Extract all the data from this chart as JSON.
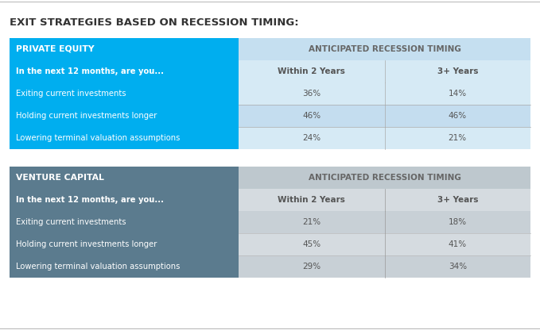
{
  "title": "EXIT STRATEGIES BASED ON RECESSION TIMING:",
  "title_fontsize": 9.5,
  "title_color": "#333333",
  "title_weight": "bold",
  "pe_header_label": "PRIVATE EQUITY",
  "pe_header_bg": "#00AEEF",
  "pe_header_text_color": "#FFFFFF",
  "vc_header_label": "VENTURE CAPITAL",
  "vc_header_bg": "#5B7B8E",
  "vc_header_text_color": "#FFFFFF",
  "col2_header": "ANTICIPATED RECESSION TIMING",
  "col2_header_bg_pe": "#C5DFF0",
  "col2_header_bg_vc": "#BEC8CE",
  "col_header_text_color": "#666666",
  "subheader_row": [
    "In the next 12 months, are you...",
    "Within 2 Years",
    "3+ Years"
  ],
  "subheader_bg_pe": "#00AEEF",
  "subheader_bg_vc": "#5B7B8E",
  "subheader_text_color_left": "#FFFFFF",
  "subheader_text_color_right": "#555555",
  "subheader_bg_right_pe": "#D6EAF5",
  "subheader_bg_right_vc": "#D5DBE0",
  "pe_rows": [
    [
      "Exiting current investments",
      "36%",
      "14%"
    ],
    [
      "Holding current investments longer",
      "46%",
      "46%"
    ],
    [
      "Lowering terminal valuation assumptions",
      "24%",
      "21%"
    ]
  ],
  "pe_row_bg_left": "#00AEEF",
  "pe_row_bg_right_alt1": "#D6EAF5",
  "pe_row_bg_right_alt2": "#C4DDEF",
  "vc_rows": [
    [
      "Exiting current investments",
      "21%",
      "18%"
    ],
    [
      "Holding current investments longer",
      "45%",
      "41%"
    ],
    [
      "Lowering terminal valuation assumptions",
      "29%",
      "34%"
    ]
  ],
  "vc_row_bg_left": "#5B7B8E",
  "vc_row_bg_right_alt1": "#D5DBE0",
  "vc_row_bg_right_alt2": "#C8D0D6",
  "row_text_color_left": "#FFFFFF",
  "row_text_color_right": "#555555",
  "fig_width": 6.79,
  "fig_height": 4.16,
  "dpi": 100,
  "bg_color": "#FFFFFF"
}
